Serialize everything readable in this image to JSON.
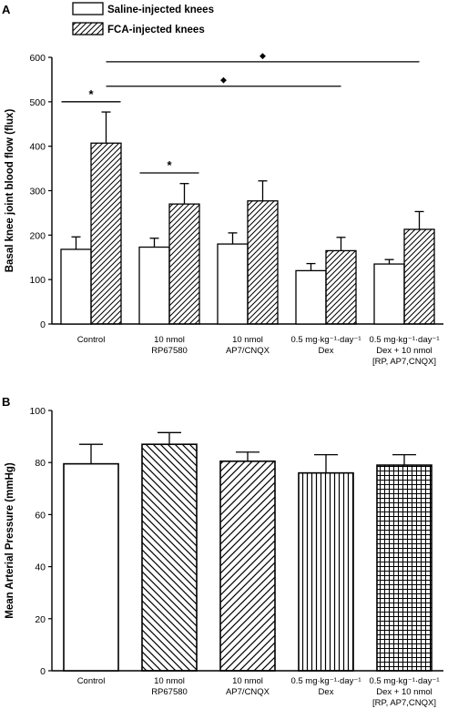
{
  "chart_data": [
    {
      "panel": "A",
      "type": "bar",
      "ylabel": "Basal knee joint blood flow (flux)",
      "ylim": [
        0,
        600
      ],
      "yticks": [
        0,
        100,
        200,
        300,
        400,
        500,
        600
      ],
      "categories": [
        [
          "Control"
        ],
        [
          "10 nmol",
          "RP67580"
        ],
        [
          "10 nmol",
          "AP7/CNQX"
        ],
        [
          "0.5 mg·kg⁻¹·day⁻¹",
          "Dex"
        ],
        [
          "0.5 mg·kg⁻¹·day⁻¹",
          "Dex + 10 nmol",
          "[RP, AP7,CNQX]"
        ]
      ],
      "legend_position": "top-left",
      "series": [
        {
          "name": "Saline-injected knees",
          "pattern": "none",
          "values": [
            168,
            173,
            180,
            120,
            135
          ],
          "errors": [
            28,
            20,
            25,
            16,
            10
          ]
        },
        {
          "name": "FCA-injected knees",
          "pattern": "diagonal",
          "values": [
            407,
            270,
            277,
            165,
            213
          ],
          "errors": [
            70,
            46,
            45,
            30,
            40
          ]
        }
      ],
      "annotations": [
        {
          "symbol": "*",
          "from": [
            0,
            0
          ],
          "to": [
            0,
            1
          ],
          "y": 500
        },
        {
          "symbol": "*",
          "from": [
            1,
            0
          ],
          "to": [
            1,
            1
          ],
          "y": 340
        },
        {
          "symbol": "◆",
          "from": [
            0,
            1
          ],
          "to": [
            3,
            1
          ],
          "y": 535
        },
        {
          "symbol": "◆",
          "from": [
            0,
            1
          ],
          "to": [
            4,
            1
          ],
          "y": 590
        }
      ]
    },
    {
      "panel": "B",
      "type": "bar",
      "ylabel": "Mean Arterial Pressure (mmHg)",
      "ylim": [
        0,
        100
      ],
      "yticks": [
        0,
        20,
        40,
        60,
        80,
        100
      ],
      "categories": [
        [
          "Control"
        ],
        [
          "10 nmol",
          "RP67580"
        ],
        [
          "10 nmol",
          "AP7/CNQX"
        ],
        [
          "0.5 mg·kg⁻¹·day⁻¹",
          "Dex"
        ],
        [
          "0.5 mg·kg⁻¹·day⁻¹",
          "Dex + 10 nmol",
          "[RP, AP7,CNQX]"
        ]
      ],
      "values": [
        79.5,
        87,
        80.5,
        76,
        79
      ],
      "errors": [
        7.5,
        4.5,
        3.5,
        7,
        4
      ],
      "patterns": [
        "none",
        "backslash",
        "slash",
        "vertical",
        "grid"
      ]
    }
  ]
}
